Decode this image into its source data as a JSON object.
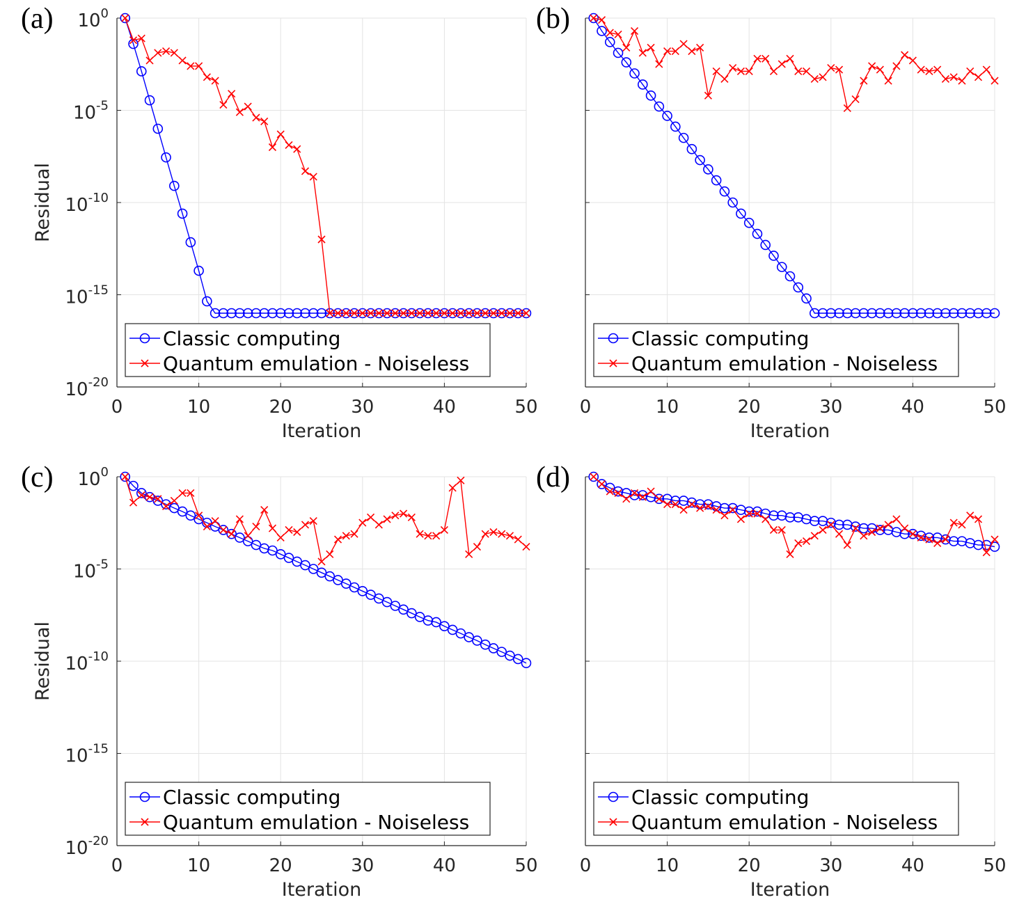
{
  "chart_data": [
    {
      "type": "line",
      "panel_label": "(a)",
      "ylabel": "Residual",
      "xlabel": "Iteration",
      "x": [
        1,
        2,
        3,
        4,
        5,
        6,
        7,
        8,
        9,
        10,
        11,
        12,
        13,
        14,
        15,
        16,
        17,
        18,
        19,
        20,
        21,
        22,
        23,
        24,
        25,
        26,
        27,
        28,
        29,
        30,
        31,
        32,
        33,
        34,
        35,
        36,
        37,
        38,
        39,
        40,
        41,
        42,
        43,
        44,
        45,
        46,
        47,
        48,
        49,
        50
      ],
      "series": [
        {
          "name": "Classic computing",
          "color": "#0000ff",
          "marker": "o",
          "values": [
            1,
            0.04,
            0.0013,
            3.5e-05,
            1e-06,
            2.8e-08,
            8e-10,
            2.5e-11,
            7e-13,
            2e-14,
            4.4e-16,
            1e-16,
            1e-16,
            1e-16,
            1e-16,
            1e-16,
            1e-16,
            1e-16,
            1e-16,
            1e-16,
            1e-16,
            1e-16,
            1e-16,
            1e-16,
            1e-16,
            1e-16,
            1e-16,
            1e-16,
            1e-16,
            1e-16,
            1e-16,
            1e-16,
            1e-16,
            1e-16,
            1e-16,
            1e-16,
            1e-16,
            1e-16,
            1e-16,
            1e-16,
            1e-16,
            1e-16,
            1e-16,
            1e-16,
            1e-16,
            1e-16,
            1e-16,
            1e-16,
            1e-16,
            1e-16
          ]
        },
        {
          "name": "Quantum emulation - Noiseless",
          "color": "#ff0000",
          "marker": "x",
          "values": [
            1,
            0.063,
            0.079,
            0.005,
            0.013,
            0.016,
            0.013,
            0.005,
            0.0025,
            0.0025,
            0.00063,
            0.0004,
            2e-05,
            7.9e-05,
            7.9e-06,
            1.6e-05,
            4e-06,
            2.5e-06,
            1e-07,
            5e-07,
            1.3e-07,
            7.9e-08,
            5e-09,
            2.5e-09,
            1e-12,
            1e-16,
            1e-16,
            1e-16,
            1e-16,
            1e-16,
            1e-16,
            1e-16,
            1e-16,
            1e-16,
            1e-16,
            1e-16,
            1e-16,
            1e-16,
            1e-16,
            1e-16,
            1e-16,
            1e-16,
            1e-16,
            1e-16,
            1e-16,
            1e-16,
            1e-16,
            1e-16,
            1e-16,
            1e-16
          ]
        }
      ],
      "xlim": [
        0,
        50
      ],
      "xticks": [
        0,
        10,
        20,
        30,
        40,
        50
      ],
      "ylim": [
        1e-20,
        1
      ],
      "log_y": true,
      "grid": true,
      "legend": "lower left",
      "yticks": [
        {
          "value": 1e-20,
          "label": "10",
          "exponent": "-20"
        },
        {
          "value": 1e-15,
          "label": "10",
          "exponent": "-15"
        },
        {
          "value": 1e-10,
          "label": "10",
          "exponent": "-10"
        },
        {
          "value": 1e-05,
          "label": "10",
          "exponent": "-5"
        },
        {
          "value": 1,
          "label": "10",
          "exponent": "0"
        }
      ]
    },
    {
      "type": "line",
      "panel_label": "(b)",
      "xlabel": "Iteration",
      "x": [
        1,
        2,
        3,
        4,
        5,
        6,
        7,
        8,
        9,
        10,
        11,
        12,
        13,
        14,
        15,
        16,
        17,
        18,
        19,
        20,
        21,
        22,
        23,
        24,
        25,
        26,
        27,
        28,
        29,
        30,
        31,
        32,
        33,
        34,
        35,
        36,
        37,
        38,
        39,
        40,
        41,
        42,
        43,
        44,
        45,
        46,
        47,
        48,
        49,
        50
      ],
      "series": [
        {
          "name": "Classic computing",
          "color": "#0000ff",
          "marker": "o",
          "values": [
            1,
            0.2,
            0.05,
            0.013,
            0.004,
            0.001,
            0.00025,
            6.3e-05,
            1.6e-05,
            5e-06,
            1.3e-06,
            3.2e-07,
            7.9e-08,
            2e-08,
            6.3e-09,
            1.6e-09,
            4e-10,
            1e-10,
            2.5e-11,
            7.9e-12,
            2e-12,
            5e-13,
            1.3e-13,
            3.2e-14,
            1e-14,
            2.5e-15,
            6.3e-16,
            1e-16,
            1e-16,
            1e-16,
            1e-16,
            1e-16,
            1e-16,
            1e-16,
            1e-16,
            1e-16,
            1e-16,
            1e-16,
            1e-16,
            1e-16,
            1e-16,
            1e-16,
            1e-16,
            1e-16,
            1e-16,
            1e-16,
            1e-16,
            1e-16,
            1e-16,
            1e-16
          ]
        },
        {
          "name": "Quantum emulation - Noiseless",
          "color": "#ff0000",
          "marker": "x",
          "values": [
            1,
            0.79,
            0.16,
            0.13,
            0.025,
            0.2,
            0.013,
            0.025,
            0.0032,
            0.016,
            0.016,
            0.04,
            0.016,
            0.025,
            6.3e-05,
            0.0013,
            0.0005,
            0.002,
            0.0013,
            0.0013,
            0.0063,
            0.0063,
            0.0013,
            0.0032,
            0.0063,
            0.0013,
            0.0013,
            0.0005,
            0.00063,
            0.002,
            0.0016,
            1.3e-05,
            4e-05,
            0.0004,
            0.0025,
            0.0016,
            0.0004,
            0.0025,
            0.01,
            0.005,
            0.0016,
            0.0013,
            0.0016,
            0.0005,
            0.00063,
            0.0004,
            0.0013,
            0.00063,
            0.0016,
            0.0004
          ]
        }
      ],
      "xlim": [
        0,
        50
      ],
      "xticks": [
        0,
        10,
        20,
        30,
        40,
        50
      ],
      "ylim": [
        1e-20,
        1
      ],
      "log_y": true,
      "grid": true,
      "legend": "lower left",
      "yticks": [
        1e-20,
        1e-15,
        1e-10,
        1e-05,
        1
      ]
    },
    {
      "type": "line",
      "panel_label": "(c)",
      "ylabel": "Residual",
      "xlabel": "Iteration",
      "x": [
        1,
        2,
        3,
        4,
        5,
        6,
        7,
        8,
        9,
        10,
        11,
        12,
        13,
        14,
        15,
        16,
        17,
        18,
        19,
        20,
        21,
        22,
        23,
        24,
        25,
        26,
        27,
        28,
        29,
        30,
        31,
        32,
        33,
        34,
        35,
        36,
        37,
        38,
        39,
        40,
        41,
        42,
        43,
        44,
        45,
        46,
        47,
        48,
        49,
        50
      ],
      "series": [
        {
          "name": "Classic computing",
          "color": "#0000ff",
          "marker": "o",
          "values": [
            1,
            0.32,
            0.13,
            0.079,
            0.05,
            0.032,
            0.02,
            0.013,
            0.0079,
            0.005,
            0.0032,
            0.002,
            0.0013,
            0.00079,
            0.0005,
            0.00032,
            0.0002,
            0.00013,
            0.0001,
            6.3e-05,
            4e-05,
            2.5e-05,
            1.6e-05,
            1e-05,
            6.3e-06,
            4e-06,
            2.5e-06,
            1.6e-06,
            1e-06,
            6.3e-07,
            4e-07,
            2.5e-07,
            1.6e-07,
            1e-07,
            6.3e-08,
            4e-08,
            2.5e-08,
            1.6e-08,
            1.3e-08,
            7.9e-09,
            5e-09,
            3.2e-09,
            2e-09,
            1.3e-09,
            7.9e-10,
            5e-10,
            3.2e-10,
            2e-10,
            1.3e-10,
            7.9e-11
          ]
        },
        {
          "name": "Quantum emulation - Noiseless",
          "color": "#ff0000",
          "marker": "x",
          "values": [
            1,
            0.04,
            0.1,
            0.079,
            0.063,
            0.025,
            0.05,
            0.13,
            0.13,
            0.0079,
            0.002,
            0.004,
            0.0013,
            0.00079,
            0.005,
            0.00063,
            0.002,
            0.016,
            0.0016,
            0.0005,
            0.0013,
            0.001,
            0.0025,
            0.004,
            2.5e-05,
            6.3e-05,
            0.0004,
            0.00063,
            0.00079,
            0.0032,
            0.0063,
            0.0025,
            0.005,
            0.0079,
            0.01,
            0.0063,
            0.00079,
            0.00063,
            0.00063,
            0.0013,
            0.25,
            0.63,
            6.3e-05,
            0.00016,
            0.00079,
            0.001,
            0.00079,
            0.00063,
            0.0004,
            0.00016
          ]
        }
      ],
      "xlim": [
        0,
        50
      ],
      "xticks": [
        0,
        10,
        20,
        30,
        40,
        50
      ],
      "ylim": [
        1e-20,
        1
      ],
      "log_y": true,
      "grid": true,
      "legend": "lower left",
      "yticks": [
        {
          "value": 1e-20,
          "label": "10",
          "exponent": "-20"
        },
        {
          "value": 1e-15,
          "label": "10",
          "exponent": "-15"
        },
        {
          "value": 1e-10,
          "label": "10",
          "exponent": "-10"
        },
        {
          "value": 1e-05,
          "label": "10",
          "exponent": "-5"
        },
        {
          "value": 1,
          "label": "10",
          "exponent": "0"
        }
      ]
    },
    {
      "type": "line",
      "panel_label": "(d)",
      "xlabel": "Iteration",
      "x": [
        1,
        2,
        3,
        4,
        5,
        6,
        7,
        8,
        9,
        10,
        11,
        12,
        13,
        14,
        15,
        16,
        17,
        18,
        19,
        20,
        21,
        22,
        23,
        24,
        25,
        26,
        27,
        28,
        29,
        30,
        31,
        32,
        33,
        34,
        35,
        36,
        37,
        38,
        39,
        40,
        41,
        42,
        43,
        44,
        45,
        46,
        47,
        48,
        49,
        50
      ],
      "series": [
        {
          "name": "Classic computing",
          "color": "#0000ff",
          "marker": "o",
          "values": [
            1,
            0.4,
            0.25,
            0.16,
            0.13,
            0.1,
            0.1,
            0.079,
            0.063,
            0.063,
            0.05,
            0.05,
            0.04,
            0.032,
            0.032,
            0.025,
            0.02,
            0.02,
            0.016,
            0.013,
            0.013,
            0.01,
            0.0079,
            0.0079,
            0.0063,
            0.0063,
            0.005,
            0.004,
            0.004,
            0.0032,
            0.0025,
            0.0025,
            0.002,
            0.0016,
            0.0016,
            0.0013,
            0.0013,
            0.001,
            0.00079,
            0.00079,
            0.00063,
            0.0005,
            0.0005,
            0.0004,
            0.00032,
            0.00032,
            0.00025,
            0.0002,
            0.0002,
            0.00016
          ]
        },
        {
          "name": "Quantum emulation - Noiseless",
          "color": "#ff0000",
          "marker": "x",
          "values": [
            1,
            0.4,
            0.16,
            0.13,
            0.063,
            0.13,
            0.079,
            0.16,
            0.063,
            0.032,
            0.032,
            0.016,
            0.032,
            0.02,
            0.025,
            0.016,
            0.0079,
            0.016,
            0.005,
            0.01,
            0.01,
            0.005,
            0.0013,
            0.0013,
            6.3e-05,
            0.00025,
            0.00032,
            0.00063,
            0.0013,
            0.0025,
            0.00079,
            0.0002,
            0.0016,
            0.00063,
            0.001,
            0.0016,
            0.0025,
            0.005,
            0.0016,
            0.00079,
            0.0005,
            0.0004,
            0.00025,
            0.0004,
            0.0032,
            0.0025,
            0.0079,
            0.005,
            7.9e-05,
            0.0004
          ]
        }
      ],
      "xlim": [
        0,
        50
      ],
      "xticks": [
        0,
        10,
        20,
        30,
        40,
        50
      ],
      "ylim": [
        1e-20,
        1
      ],
      "log_y": true,
      "grid": true,
      "legend": "lower left",
      "yticks": [
        1e-20,
        1e-15,
        1e-10,
        1e-05,
        1
      ]
    }
  ]
}
